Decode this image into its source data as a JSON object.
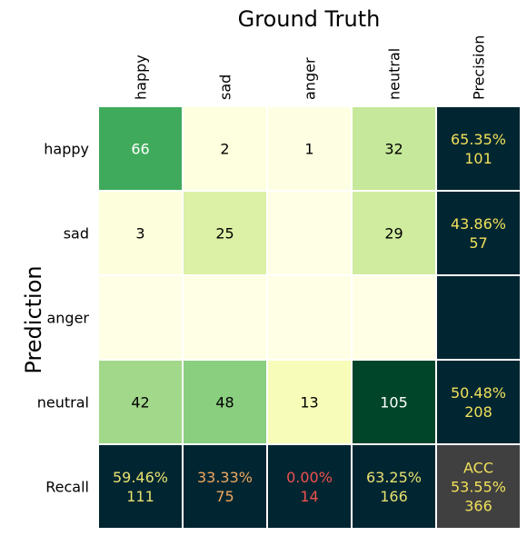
{
  "chart_data": {
    "type": "heatmap",
    "title": "Ground Truth",
    "xlabel": "Ground Truth",
    "ylabel": "Prediction",
    "x_categories": [
      "happy",
      "sad",
      "anger",
      "neutral",
      "Precision"
    ],
    "y_categories": [
      "happy",
      "sad",
      "anger",
      "neutral",
      "Recall"
    ],
    "matrix": [
      [
        66,
        2,
        1,
        32
      ],
      [
        3,
        25,
        null,
        29
      ],
      [
        null,
        null,
        null,
        null
      ],
      [
        42,
        48,
        13,
        105
      ]
    ],
    "precision": [
      {
        "pct": "65.35%",
        "total": "101",
        "color": "#f0e05a"
      },
      {
        "pct": "43.86%",
        "total": "57",
        "color": "#f0e05a"
      },
      {
        "pct": "",
        "total": "",
        "color": "#f0e05a"
      },
      {
        "pct": "50.48%",
        "total": "208",
        "color": "#f0e05a"
      }
    ],
    "recall": [
      {
        "pct": "59.46%",
        "total": "111",
        "color": "#e8e070"
      },
      {
        "pct": "33.33%",
        "total": "75",
        "color": "#f0a860"
      },
      {
        "pct": "0.00%",
        "total": "14",
        "color": "#f05050"
      },
      {
        "pct": "63.25%",
        "total": "166",
        "color": "#e8e070"
      }
    ],
    "accuracy": {
      "label": "ACC",
      "pct": "53.55%",
      "total": "366",
      "color": "#f0e05a"
    },
    "colors": {
      "summary_bg": "#012631",
      "acc_bg": "#404040",
      "grid_line": "#ffffff",
      "cmap": [
        "#ffffe5",
        "#f7fcb9",
        "#d9f0a3",
        "#addd8e",
        "#78c679",
        "#41ab5d",
        "#238443",
        "#006837",
        "#004529"
      ]
    },
    "color_max": 105
  }
}
